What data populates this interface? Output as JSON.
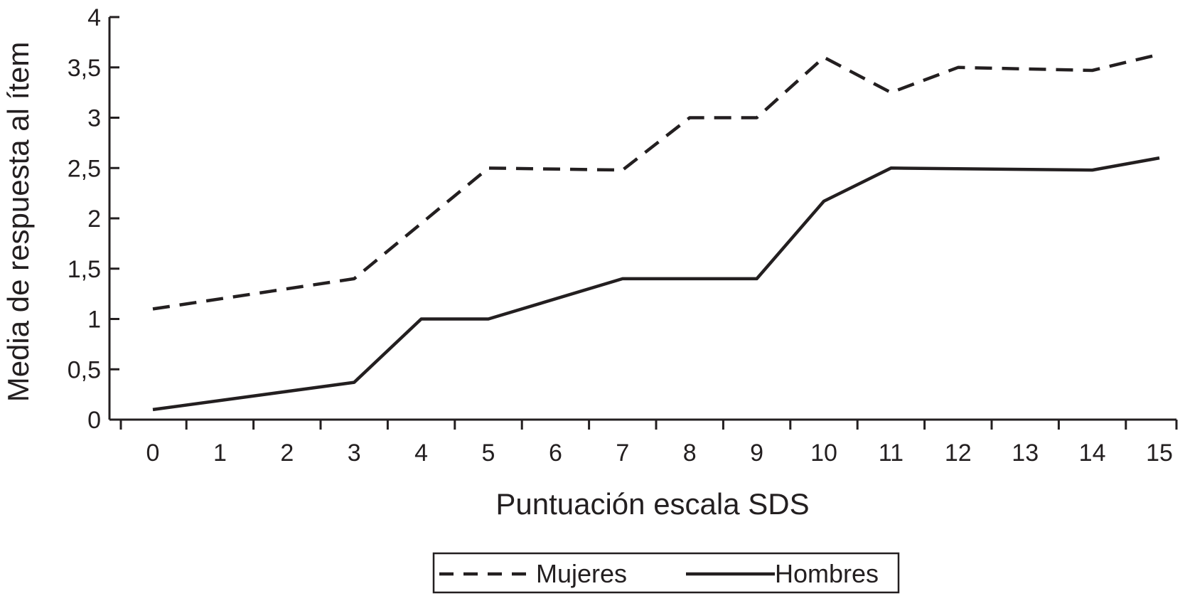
{
  "chart_data": {
    "type": "line",
    "title": "",
    "xlabel": "Puntuación escala SDS",
    "ylabel": "Media de respuesta al ítem",
    "x_tick_labels": [
      "0",
      "1",
      "2",
      "3",
      "4",
      "5",
      "6",
      "7",
      "8",
      "9",
      "10",
      "11",
      "12",
      "13",
      "14",
      "15"
    ],
    "y_tick_labels": [
      "0",
      "0,5",
      "1",
      "1,5",
      "2",
      "2,5",
      "3",
      "3,5",
      "4"
    ],
    "ylim": [
      0,
      4
    ],
    "y_ticks": [
      0,
      0.5,
      1,
      1.5,
      2,
      2.5,
      3,
      3.5,
      4
    ],
    "x_positions": [
      0,
      1,
      2,
      3,
      4,
      5,
      6,
      7,
      8,
      9,
      10,
      11,
      12,
      13,
      14,
      15
    ],
    "grid": false,
    "legend_position": "bottom",
    "series": [
      {
        "name": "Mujeres",
        "style": "dashed",
        "color": "#231f20",
        "points": [
          [
            0,
            1.1
          ],
          [
            3,
            1.4
          ],
          [
            5,
            2.5
          ],
          [
            7,
            2.48
          ],
          [
            8,
            3.0
          ],
          [
            9,
            3.0
          ],
          [
            10,
            3.6
          ],
          [
            11,
            3.25
          ],
          [
            12,
            3.5
          ],
          [
            14,
            3.47
          ],
          [
            15,
            3.63
          ]
        ]
      },
      {
        "name": "Hombres",
        "style": "solid",
        "color": "#231f20",
        "points": [
          [
            0,
            0.1
          ],
          [
            3,
            0.37
          ],
          [
            4,
            1.0
          ],
          [
            5,
            1.0
          ],
          [
            7,
            1.4
          ],
          [
            8,
            1.4
          ],
          [
            9,
            1.4
          ],
          [
            10,
            2.17
          ],
          [
            11,
            2.5
          ],
          [
            14,
            2.48
          ],
          [
            15,
            2.6
          ]
        ]
      }
    ]
  }
}
